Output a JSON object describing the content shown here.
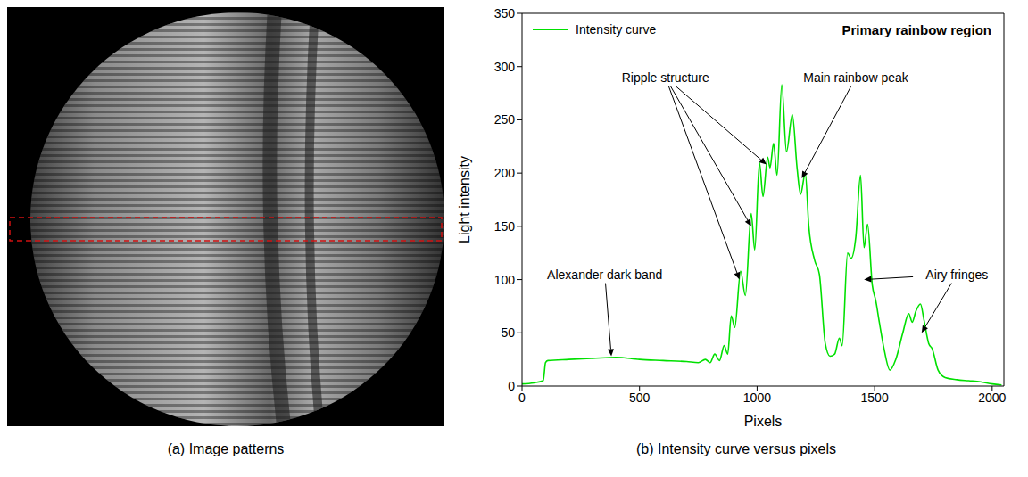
{
  "image_panel": {
    "caption": "(a) Image patterns"
  },
  "chart_data": {
    "type": "line",
    "caption": "(b) Intensity curve versus pixels",
    "title": "Primary rainbow region",
    "x_label": "Pixels",
    "y_label": "Light intensity",
    "xlim": [
      0,
      2050
    ],
    "ylim": [
      0,
      350
    ],
    "xticks": [
      0,
      500,
      1000,
      1500,
      2000
    ],
    "yticks": [
      0,
      50,
      100,
      150,
      200,
      250,
      300,
      350
    ],
    "legend": "upper left",
    "x": [
      0,
      50,
      90,
      100,
      110,
      200,
      300,
      400,
      500,
      600,
      700,
      750,
      780,
      800,
      820,
      840,
      860,
      875,
      890,
      905,
      930,
      950,
      975,
      990,
      1010,
      1025,
      1045,
      1055,
      1070,
      1085,
      1105,
      1125,
      1150,
      1170,
      1185,
      1205,
      1220,
      1245,
      1265,
      1290,
      1310,
      1330,
      1350,
      1362,
      1385,
      1400,
      1420,
      1440,
      1455,
      1470,
      1490,
      1505,
      1520,
      1540,
      1565,
      1590,
      1620,
      1645,
      1660,
      1675,
      1695,
      1710,
      1730,
      1745,
      1770,
      1800,
      1850,
      1900,
      1950,
      2000,
      2040
    ],
    "series": [
      {
        "name": "Intensity curve",
        "color": "#00e000",
        "values": [
          2,
          3,
          5,
          22,
          24,
          25,
          26,
          27,
          25,
          24,
          23,
          22,
          25,
          22,
          30,
          24,
          38,
          30,
          66,
          55,
          108,
          85,
          162,
          128,
          210,
          178,
          215,
          205,
          228,
          198,
          283,
          220,
          255,
          205,
          180,
          200,
          150,
          118,
          105,
          40,
          28,
          30,
          45,
          38,
          125,
          120,
          140,
          198,
          130,
          152,
          95,
          80,
          60,
          35,
          15,
          25,
          50,
          68,
          60,
          70,
          77,
          62,
          40,
          35,
          15,
          8,
          6,
          5,
          4,
          2,
          1
        ]
      }
    ],
    "annotations": [
      {
        "text": "Ripple structure",
        "x": 610,
        "y": 290,
        "targets": [
          [
            1040,
            208
          ],
          [
            975,
            150
          ],
          [
            925,
            100
          ]
        ]
      },
      {
        "text": "Main rainbow peak",
        "x": 1420,
        "y": 290,
        "targets": [
          [
            1190,
            195
          ]
        ]
      },
      {
        "text": "Alexander dark band",
        "x": 352,
        "y": 105,
        "targets": [
          [
            380,
            28
          ]
        ]
      },
      {
        "text": "Airy fringes",
        "x": 1850,
        "y": 105,
        "targets": [
          [
            1455,
            100
          ],
          [
            1700,
            50
          ]
        ]
      }
    ]
  }
}
